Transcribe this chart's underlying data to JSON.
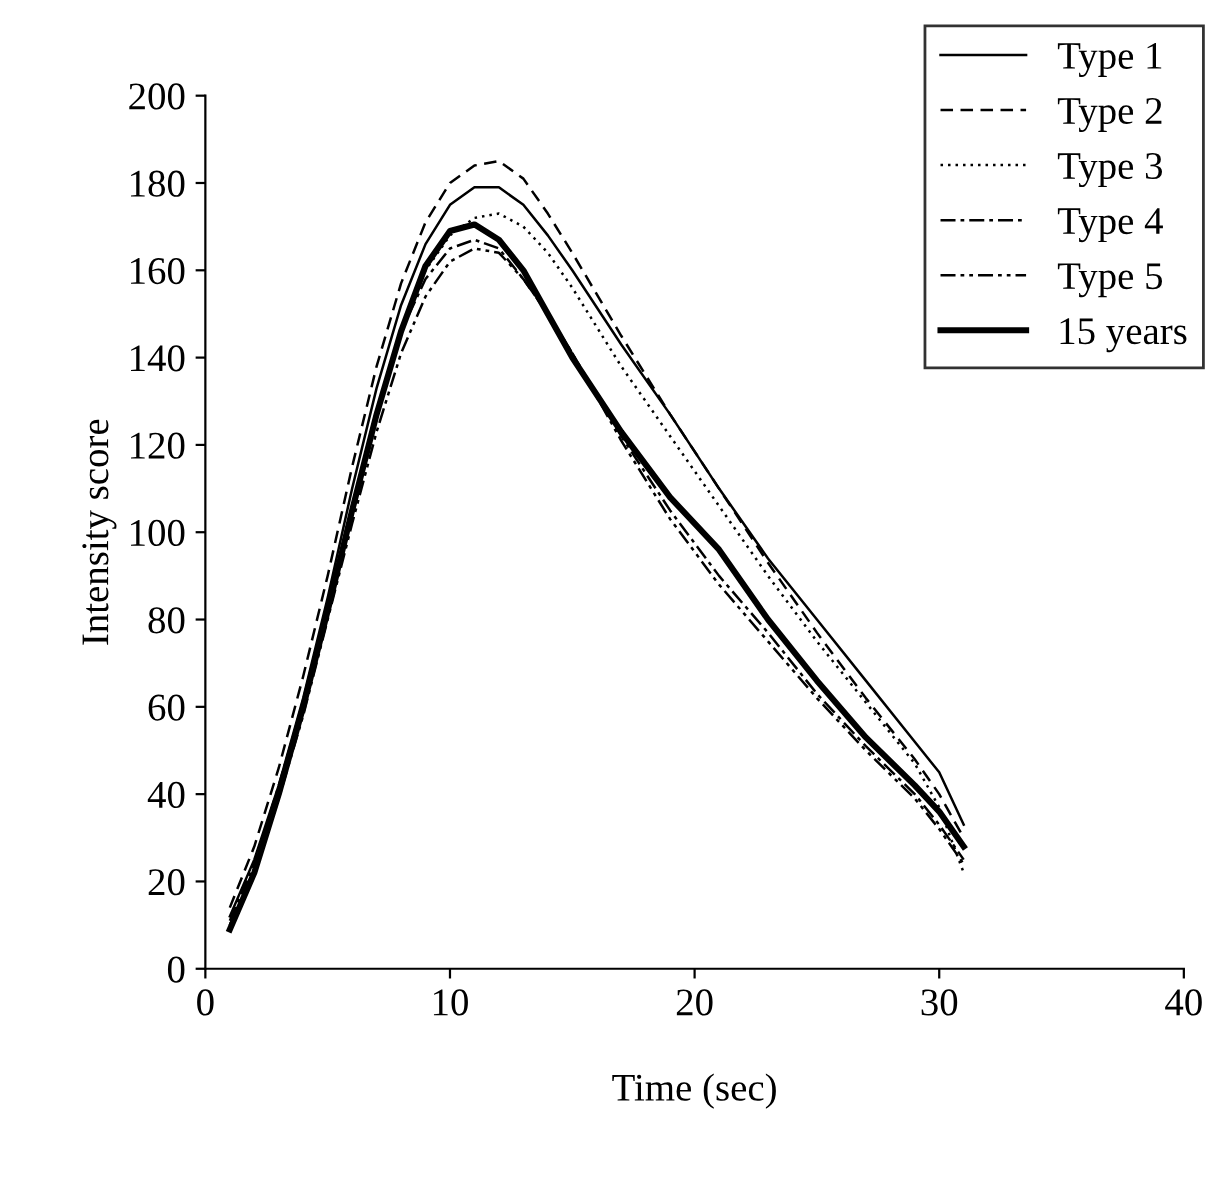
{
  "chart_data": {
    "type": "line",
    "xlabel": "Time (sec)",
    "ylabel": "Intensity score",
    "x": [
      1,
      2,
      3,
      4,
      5,
      6,
      7,
      8,
      9,
      10,
      11,
      12,
      13,
      14,
      15,
      17,
      19,
      21,
      23,
      25,
      27,
      29,
      30,
      31
    ],
    "xlim": [
      0,
      40
    ],
    "xticks": [
      0,
      10,
      20,
      30,
      40
    ],
    "ylim": [
      0,
      200
    ],
    "yticks": [
      0,
      20,
      40,
      60,
      80,
      100,
      120,
      140,
      160,
      180,
      200
    ],
    "grid": false,
    "legend": "top right",
    "marker": "none",
    "series": [
      {
        "name": "Type 1",
        "color": "#000000",
        "line_style": "solid",
        "values": [
          12,
          25,
          42,
          62,
          85,
          110,
          133,
          152,
          166,
          175,
          179,
          179,
          175,
          168,
          160,
          143,
          127,
          110,
          94,
          80,
          66,
          52,
          45,
          33
        ]
      },
      {
        "name": "Type 2",
        "color": "#000000",
        "line_style": "dashed",
        "values": [
          14,
          28,
          46,
          67,
          90,
          115,
          138,
          157,
          171,
          180,
          184,
          185,
          181,
          173,
          164,
          145,
          127,
          110,
          93,
          77,
          62,
          48,
          40,
          30
        ]
      },
      {
        "name": "Type 3",
        "color": "#000000",
        "line_style": "dotted",
        "values": [
          10,
          22,
          40,
          60,
          82,
          105,
          127,
          146,
          160,
          168,
          172,
          173,
          170,
          164,
          156,
          138,
          122,
          106,
          90,
          75,
          61,
          47,
          37,
          22
        ]
      },
      {
        "name": "Type 4",
        "color": "#000000",
        "line_style": "dashdot",
        "values": [
          11,
          24,
          42,
          61,
          83,
          106,
          128,
          146,
          158,
          165,
          167,
          165,
          158,
          150,
          141,
          122,
          105,
          90,
          77,
          63,
          51,
          40,
          33,
          25
        ]
      },
      {
        "name": "Type 5",
        "color": "#000000",
        "line_style": "dashdotdot",
        "values": [
          10,
          22,
          39,
          58,
          80,
          102,
          123,
          141,
          154,
          162,
          165,
          164,
          158,
          150,
          141,
          121,
          103,
          88,
          75,
          62,
          50,
          39,
          32,
          24
        ]
      },
      {
        "name": "15 years",
        "color": "#000000",
        "line_style": "solid",
        "values": [
          9,
          22,
          40,
          60,
          82,
          105,
          127,
          146,
          161,
          169,
          170.5,
          167,
          160,
          150,
          140,
          123,
          108,
          96,
          80,
          66,
          53,
          42,
          36,
          28
        ]
      }
    ]
  }
}
